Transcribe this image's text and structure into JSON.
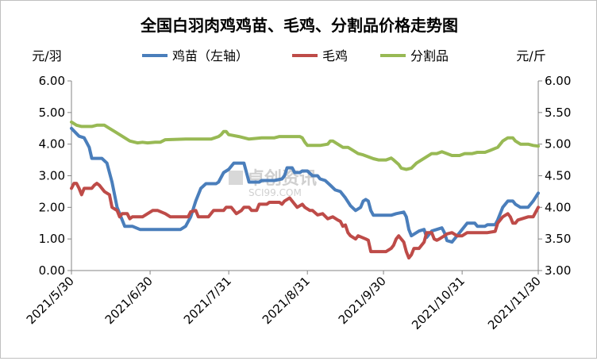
{
  "chart_data": {
    "type": "line",
    "title": "全国白羽肉鸡鸡苗、毛鸡、分割品价格走势图",
    "left_unit": "元/羽",
    "right_unit": "元/斤",
    "watermark": "卓创资讯",
    "watermark_sub": "SCI99.COM",
    "y_left": {
      "min": 0,
      "max": 6,
      "ticks": [
        "0.00",
        "1.00",
        "2.00",
        "3.00",
        "4.00",
        "5.00",
        "6.00"
      ]
    },
    "y_right": {
      "min": 3,
      "max": 6,
      "ticks": [
        "3.00",
        "3.50",
        "4.00",
        "4.50",
        "5.00",
        "5.50",
        "6.00"
      ]
    },
    "x_labels": [
      "2021/5/30",
      "2021/6/30",
      "2021/7/31",
      "2021/8/31",
      "2021/9/30",
      "2021/10/31",
      "2021/11/30"
    ],
    "x_label_days": [
      0,
      31,
      62,
      93,
      123,
      154,
      184
    ],
    "legend_placement": "top",
    "series": [
      {
        "name": "鸡苗（左轴）",
        "axis": "left",
        "color": "#4a7ebb",
        "points": [
          [
            0,
            4.5
          ],
          [
            3,
            4.25
          ],
          [
            5,
            4.2
          ],
          [
            7,
            3.9
          ],
          [
            8,
            3.55
          ],
          [
            12,
            3.55
          ],
          [
            14,
            3.4
          ],
          [
            16,
            2.8
          ],
          [
            17,
            2.4
          ],
          [
            18,
            2.0
          ],
          [
            20,
            1.6
          ],
          [
            21,
            1.4
          ],
          [
            24,
            1.4
          ],
          [
            27,
            1.3
          ],
          [
            33,
            1.3
          ],
          [
            40,
            1.3
          ],
          [
            43,
            1.3
          ],
          [
            45,
            1.4
          ],
          [
            47,
            1.7
          ],
          [
            49,
            2.2
          ],
          [
            51,
            2.6
          ],
          [
            53,
            2.75
          ],
          [
            57,
            2.75
          ],
          [
            58,
            2.8
          ],
          [
            60,
            3.1
          ],
          [
            62,
            3.2
          ],
          [
            64,
            3.4
          ],
          [
            68,
            3.4
          ],
          [
            69,
            3.1
          ],
          [
            70,
            2.8
          ],
          [
            74,
            2.8
          ],
          [
            75,
            2.85
          ],
          [
            80,
            2.85
          ],
          [
            83,
            2.9
          ],
          [
            84,
            3.0
          ],
          [
            85,
            3.25
          ],
          [
            87,
            3.25
          ],
          [
            88,
            3.1
          ],
          [
            90,
            3.1
          ],
          [
            91,
            3.15
          ],
          [
            93,
            3.15
          ],
          [
            95,
            3.0
          ],
          [
            97,
            3.0
          ],
          [
            98,
            2.9
          ],
          [
            100,
            2.85
          ],
          [
            102,
            2.7
          ],
          [
            104,
            2.55
          ],
          [
            106,
            2.5
          ],
          [
            108,
            2.3
          ],
          [
            110,
            2.05
          ],
          [
            112,
            1.9
          ],
          [
            114,
            2.0
          ],
          [
            115,
            2.2
          ],
          [
            116,
            2.25
          ],
          [
            117,
            2.2
          ],
          [
            118,
            1.9
          ],
          [
            119,
            1.75
          ],
          [
            126,
            1.75
          ],
          [
            128,
            1.8
          ],
          [
            131,
            1.85
          ],
          [
            132,
            1.7
          ],
          [
            133,
            1.3
          ],
          [
            134,
            1.1
          ],
          [
            136,
            1.2
          ],
          [
            137,
            1.25
          ],
          [
            139,
            1.3
          ],
          [
            140,
            1.05
          ],
          [
            142,
            1.25
          ],
          [
            144,
            1.3
          ],
          [
            146,
            1.35
          ],
          [
            147,
            1.2
          ],
          [
            148,
            0.95
          ],
          [
            150,
            0.9
          ],
          [
            152,
            1.1
          ],
          [
            154,
            1.3
          ],
          [
            156,
            1.5
          ],
          [
            159,
            1.5
          ],
          [
            160,
            1.4
          ],
          [
            163,
            1.4
          ],
          [
            164,
            1.45
          ],
          [
            167,
            1.45
          ],
          [
            168,
            1.6
          ],
          [
            170,
            2.0
          ],
          [
            172,
            2.2
          ],
          [
            174,
            2.2
          ],
          [
            175,
            2.1
          ],
          [
            177,
            2.0
          ],
          [
            180,
            2.0
          ],
          [
            182,
            2.2
          ],
          [
            184,
            2.45
          ]
        ]
      },
      {
        "name": "毛鸡",
        "axis": "right",
        "color": "#be4b48",
        "points": [
          [
            0,
            4.3
          ],
          [
            1,
            4.38
          ],
          [
            2,
            4.38
          ],
          [
            3,
            4.3
          ],
          [
            4,
            4.2
          ],
          [
            5,
            4.3
          ],
          [
            8,
            4.3
          ],
          [
            9,
            4.35
          ],
          [
            10,
            4.38
          ],
          [
            11,
            4.35
          ],
          [
            12,
            4.3
          ],
          [
            13,
            4.25
          ],
          [
            15,
            4.2
          ],
          [
            16,
            4.0
          ],
          [
            18,
            3.95
          ],
          [
            19,
            3.85
          ],
          [
            20,
            3.9
          ],
          [
            22,
            3.9
          ],
          [
            23,
            3.82
          ],
          [
            24,
            3.85
          ],
          [
            28,
            3.85
          ],
          [
            30,
            3.9
          ],
          [
            32,
            3.95
          ],
          [
            34,
            3.95
          ],
          [
            37,
            3.9
          ],
          [
            39,
            3.85
          ],
          [
            42,
            3.85
          ],
          [
            46,
            3.85
          ],
          [
            47,
            3.93
          ],
          [
            49,
            3.95
          ],
          [
            50,
            3.85
          ],
          [
            54,
            3.85
          ],
          [
            56,
            3.95
          ],
          [
            60,
            3.95
          ],
          [
            61,
            4.0
          ],
          [
            63,
            4.0
          ],
          [
            64,
            3.95
          ],
          [
            65,
            3.9
          ],
          [
            67,
            3.95
          ],
          [
            68,
            4.0
          ],
          [
            70,
            4.0
          ],
          [
            71,
            3.95
          ],
          [
            73,
            3.95
          ],
          [
            74,
            4.05
          ],
          [
            77,
            4.05
          ],
          [
            78,
            4.08
          ],
          [
            82,
            4.08
          ],
          [
            83,
            4.05
          ],
          [
            84,
            4.1
          ],
          [
            86,
            4.15
          ],
          [
            87,
            4.1
          ],
          [
            88,
            4.05
          ],
          [
            89,
            4.0
          ],
          [
            91,
            4.05
          ],
          [
            92,
            4.0
          ],
          [
            94,
            3.95
          ],
          [
            95,
            3.95
          ],
          [
            97,
            3.88
          ],
          [
            99,
            3.9
          ],
          [
            101,
            3.82
          ],
          [
            103,
            3.85
          ],
          [
            105,
            3.8
          ],
          [
            106,
            3.78
          ],
          [
            107,
            3.7
          ],
          [
            108,
            3.72
          ],
          [
            109,
            3.6
          ],
          [
            110,
            3.55
          ],
          [
            112,
            3.5
          ],
          [
            113,
            3.55
          ],
          [
            116,
            3.5
          ],
          [
            117,
            3.48
          ],
          [
            118,
            3.3
          ],
          [
            120,
            3.3
          ],
          [
            124,
            3.3
          ],
          [
            126,
            3.35
          ],
          [
            127,
            3.4
          ],
          [
            128,
            3.5
          ],
          [
            129,
            3.55
          ],
          [
            130,
            3.5
          ],
          [
            131,
            3.45
          ],
          [
            132,
            3.3
          ],
          [
            133,
            3.2
          ],
          [
            134,
            3.25
          ],
          [
            135,
            3.35
          ],
          [
            137,
            3.35
          ],
          [
            139,
            3.45
          ],
          [
            140,
            3.6
          ],
          [
            142,
            3.6
          ],
          [
            143,
            3.5
          ],
          [
            144,
            3.48
          ],
          [
            145,
            3.5
          ],
          [
            147,
            3.55
          ],
          [
            148,
            3.58
          ],
          [
            150,
            3.6
          ],
          [
            152,
            3.55
          ],
          [
            154,
            3.55
          ],
          [
            156,
            3.6
          ],
          [
            164,
            3.6
          ],
          [
            167,
            3.62
          ],
          [
            168,
            3.75
          ],
          [
            170,
            3.85
          ],
          [
            172,
            3.9
          ],
          [
            173,
            3.85
          ],
          [
            174,
            3.75
          ],
          [
            175,
            3.75
          ],
          [
            176,
            3.8
          ],
          [
            180,
            3.85
          ],
          [
            182,
            3.85
          ],
          [
            184,
            4.0
          ]
        ]
      },
      {
        "name": "分割品",
        "axis": "right",
        "color": "#98b954",
        "points": [
          [
            0,
            5.35
          ],
          [
            2,
            5.3
          ],
          [
            4,
            5.28
          ],
          [
            8,
            5.28
          ],
          [
            10,
            5.3
          ],
          [
            13,
            5.3
          ],
          [
            15,
            5.25
          ],
          [
            17,
            5.2
          ],
          [
            19,
            5.15
          ],
          [
            21,
            5.1
          ],
          [
            23,
            5.05
          ],
          [
            26,
            5.02
          ],
          [
            28,
            5.03
          ],
          [
            30,
            5.02
          ],
          [
            33,
            5.03
          ],
          [
            35,
            5.03
          ],
          [
            36,
            5.05
          ],
          [
            37,
            5.07
          ],
          [
            45,
            5.08
          ],
          [
            55,
            5.08
          ],
          [
            58,
            5.12
          ],
          [
            59,
            5.15
          ],
          [
            60,
            5.2
          ],
          [
            61,
            5.2
          ],
          [
            62,
            5.15
          ],
          [
            66,
            5.12
          ],
          [
            68,
            5.1
          ],
          [
            70,
            5.08
          ],
          [
            75,
            5.1
          ],
          [
            80,
            5.1
          ],
          [
            82,
            5.12
          ],
          [
            90,
            5.12
          ],
          [
            91,
            5.1
          ],
          [
            92,
            5.03
          ],
          [
            93,
            4.98
          ],
          [
            95,
            4.98
          ],
          [
            98,
            4.98
          ],
          [
            101,
            5.0
          ],
          [
            102,
            5.05
          ],
          [
            103,
            5.05
          ],
          [
            105,
            5.0
          ],
          [
            107,
            4.95
          ],
          [
            109,
            4.95
          ],
          [
            111,
            4.9
          ],
          [
            113,
            4.85
          ],
          [
            115,
            4.83
          ],
          [
            117,
            4.8
          ],
          [
            119,
            4.77
          ],
          [
            121,
            4.75
          ],
          [
            124,
            4.75
          ],
          [
            126,
            4.78
          ],
          [
            127,
            4.75
          ],
          [
            129,
            4.68
          ],
          [
            130,
            4.62
          ],
          [
            132,
            4.6
          ],
          [
            134,
            4.62
          ],
          [
            136,
            4.7
          ],
          [
            138,
            4.75
          ],
          [
            140,
            4.8
          ],
          [
            142,
            4.85
          ],
          [
            144,
            4.85
          ],
          [
            146,
            4.88
          ],
          [
            148,
            4.85
          ],
          [
            150,
            4.82
          ],
          [
            153,
            4.82
          ],
          [
            155,
            4.85
          ],
          [
            158,
            4.85
          ],
          [
            160,
            4.87
          ],
          [
            163,
            4.87
          ],
          [
            165,
            4.9
          ],
          [
            168,
            4.95
          ],
          [
            170,
            5.05
          ],
          [
            172,
            5.1
          ],
          [
            174,
            5.1
          ],
          [
            175,
            5.05
          ],
          [
            177,
            5.0
          ],
          [
            180,
            5.0
          ],
          [
            182,
            4.98
          ],
          [
            184,
            4.97
          ]
        ]
      }
    ]
  }
}
